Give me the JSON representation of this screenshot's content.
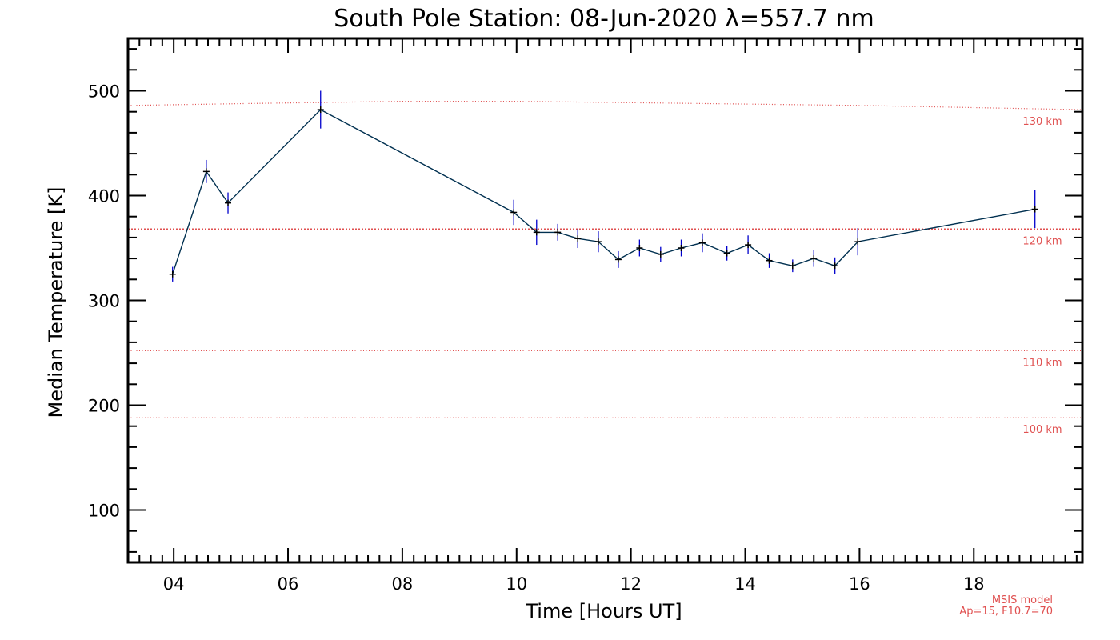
{
  "chart_data": {
    "type": "line",
    "title": "South Pole Station: 08-Jun-2020 λ=557.7 nm",
    "xlabel": "Time [Hours UT]",
    "ylabel": "Median Temperature [K]",
    "xlim": [
      3.2,
      19.9
    ],
    "ylim": [
      50,
      550
    ],
    "x_ticks": [
      {
        "value": 4,
        "label": "04"
      },
      {
        "value": 6,
        "label": "06"
      },
      {
        "value": 8,
        "label": "08"
      },
      {
        "value": 10,
        "label": "10"
      },
      {
        "value": 12,
        "label": "12"
      },
      {
        "value": 14,
        "label": "14"
      },
      {
        "value": 16,
        "label": "16"
      },
      {
        "value": 18,
        "label": "18"
      }
    ],
    "y_ticks": [
      {
        "value": 100,
        "label": "100"
      },
      {
        "value": 200,
        "label": "200"
      },
      {
        "value": 300,
        "label": "300"
      },
      {
        "value": 400,
        "label": "400"
      },
      {
        "value": 500,
        "label": "500"
      }
    ],
    "series": [
      {
        "name": "Median Temperature",
        "color": "#003050",
        "error_color": "#0000cc",
        "x": [
          3.98,
          4.57,
          4.95,
          6.57,
          9.95,
          10.35,
          10.72,
          11.07,
          11.43,
          11.78,
          12.15,
          12.52,
          12.88,
          13.25,
          13.68,
          14.05,
          14.42,
          14.83,
          15.2,
          15.57,
          15.97,
          19.07
        ],
        "y": [
          325,
          423,
          393,
          482,
          384,
          365,
          365,
          359,
          356,
          339,
          350,
          344,
          350,
          355,
          345,
          353,
          338,
          333,
          340,
          333,
          356,
          387
        ],
        "y_err": [
          7,
          11,
          10,
          18,
          12,
          12,
          8,
          9,
          10,
          8,
          8,
          7,
          8,
          9,
          7,
          9,
          7,
          6,
          8,
          8,
          13,
          18
        ]
      }
    ],
    "reference_lines": [
      {
        "label": "130 km",
        "color": "#e05050",
        "style": "dotted",
        "x": [
          3.2,
          5.5,
          8,
          10,
          13,
          16,
          19.9
        ],
        "y": [
          486,
          488,
          490,
          490,
          488,
          486,
          482
        ]
      },
      {
        "label": "120 km",
        "color": "#e05050",
        "style": "dotted-dense",
        "x": [
          3.2,
          19.9
        ],
        "y": [
          368,
          368
        ]
      },
      {
        "label": "110 km",
        "color": "#e05050",
        "style": "dotted",
        "x": [
          3.2,
          19.9
        ],
        "y": [
          252,
          252
        ]
      },
      {
        "label": "100 km",
        "color": "#e05050",
        "style": "dotted",
        "x": [
          3.2,
          19.9
        ],
        "y": [
          188,
          188
        ]
      }
    ],
    "model_note": {
      "lines": [
        "MSIS model",
        "Ap=15, F10.7=70"
      ],
      "color": "#e05050"
    }
  }
}
